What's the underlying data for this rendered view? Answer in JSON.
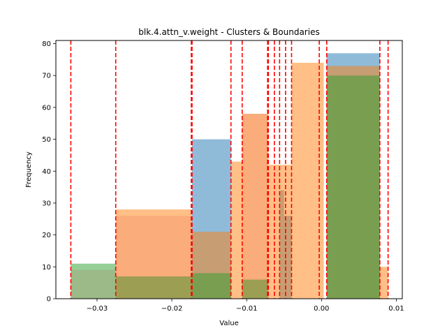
{
  "chart_data": {
    "type": "bar",
    "title": "blk.4.attn_v.weight - Clusters & Boundaries",
    "xlabel": "Value",
    "ylabel": "Frequency",
    "xlim": [
      -0.0355,
      0.0108
    ],
    "ylim": [
      0,
      81
    ],
    "x_ticks": [
      -0.03,
      -0.02,
      -0.01,
      0.0,
      0.01
    ],
    "x_tick_labels": [
      "−0.03",
      "−0.02",
      "−0.01",
      "0.00",
      "0.01"
    ],
    "y_ticks": [
      0,
      10,
      20,
      30,
      40,
      50,
      60,
      70,
      80
    ],
    "y_tick_labels": [
      "0",
      "10",
      "20",
      "30",
      "40",
      "50",
      "60",
      "70",
      "80"
    ],
    "grid": false,
    "legend": null,
    "series": [
      {
        "color": "#1f77b4",
        "opacity": 0.5,
        "bins": [
          {
            "x0": -0.0173,
            "x1": -0.0121,
            "count": 50
          },
          {
            "x0": -0.0056,
            "x1": -0.005,
            "count": 34
          },
          {
            "x0": -0.005,
            "x1": -0.004,
            "count": 26
          },
          {
            "x0": 0.0007,
            "x1": 0.0078,
            "count": 77
          }
        ]
      },
      {
        "color": "#ff7f0e",
        "opacity": 0.5,
        "bins": [
          {
            "x0": -0.0275,
            "x1": -0.0173,
            "count": 28
          },
          {
            "x0": -0.0173,
            "x1": -0.0121,
            "count": 21
          },
          {
            "x0": -0.0121,
            "x1": -0.0106,
            "count": 43
          },
          {
            "x0": -0.0106,
            "x1": -0.0071,
            "count": 58
          },
          {
            "x0": -0.0071,
            "x1": -0.004,
            "count": 42
          },
          {
            "x0": -0.004,
            "x1": 0.0003,
            "count": 74
          },
          {
            "x0": 0.0007,
            "x1": 0.0078,
            "count": 73
          },
          {
            "x0": 0.0078,
            "x1": 0.0089,
            "count": 10
          }
        ]
      },
      {
        "color": "#2ca02c",
        "opacity": 0.5,
        "bins": [
          {
            "x0": -0.0335,
            "x1": -0.0275,
            "count": 11
          },
          {
            "x0": -0.0275,
            "x1": -0.0173,
            "count": 7
          },
          {
            "x0": -0.0173,
            "x1": -0.0121,
            "count": 8
          },
          {
            "x0": -0.0106,
            "x1": -0.0071,
            "count": 6
          },
          {
            "x0": 0.0007,
            "x1": 0.0078,
            "count": 70
          }
        ]
      },
      {
        "color": "#d62728",
        "opacity": 0.12,
        "bins": [
          {
            "x0": -0.0335,
            "x1": -0.0275,
            "count": 9
          },
          {
            "x0": -0.0275,
            "x1": -0.0173,
            "count": 26
          },
          {
            "x0": -0.0106,
            "x1": -0.0071,
            "count": 58
          }
        ]
      }
    ],
    "boundaries": [
      -0.0335,
      -0.0275,
      -0.0174,
      -0.0173,
      -0.0121,
      -0.0106,
      -0.0072,
      -0.0071,
      -0.0063,
      -0.0056,
      -0.0048,
      -0.004,
      -0.0003,
      0.0007,
      0.0078,
      0.0089
    ],
    "boundary_color": "#ff0000"
  }
}
